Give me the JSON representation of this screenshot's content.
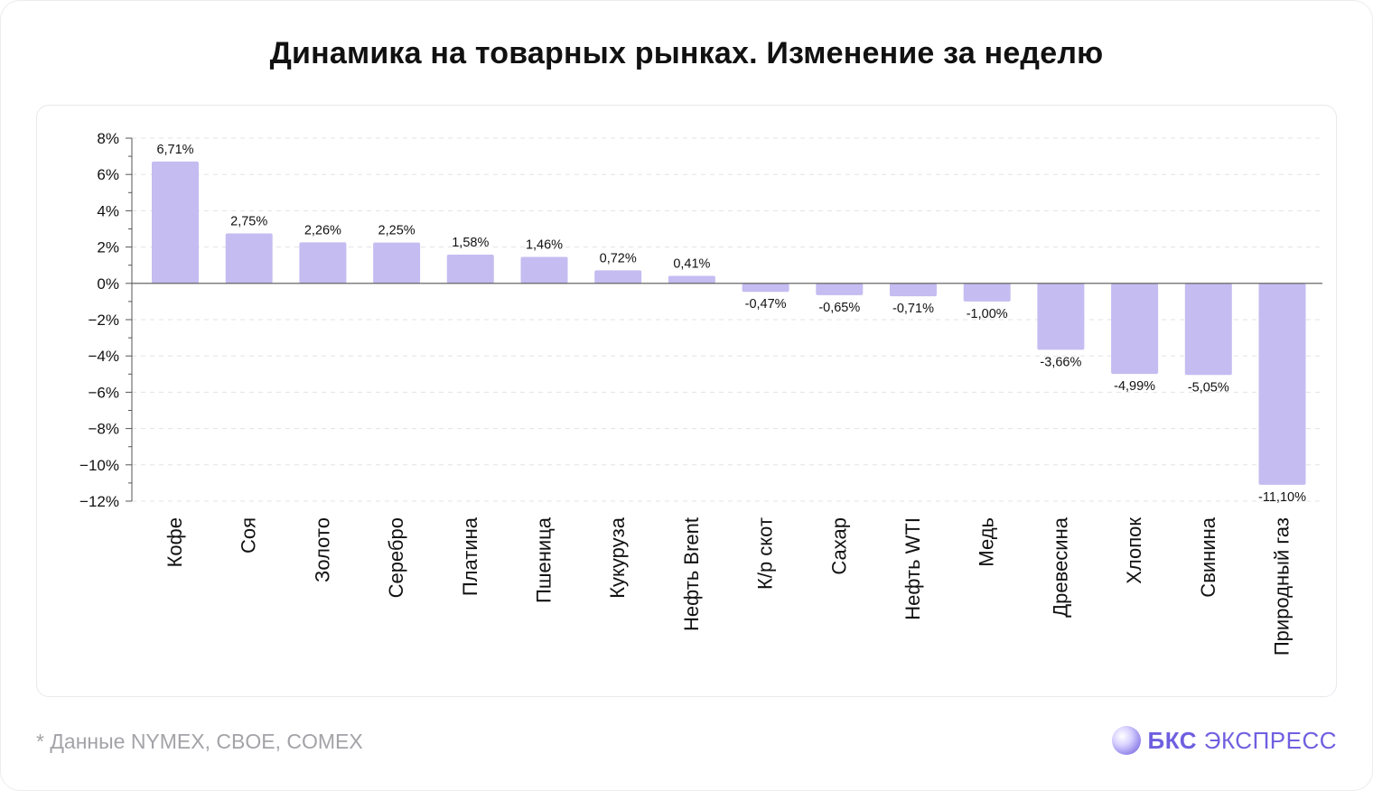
{
  "title": "Динамика на товарных рынках. Изменение за неделю",
  "footnote": "* Данные NYMEX, CBOE, COMEX",
  "brand": {
    "bold": "БКС",
    "light": " ЭКСПРЕСС"
  },
  "colors": {
    "bar": "#c5bcf1",
    "grid": "#e3e3e8",
    "axis": "#555555",
    "brand": "#6f5fe0"
  },
  "chart_data": {
    "type": "bar",
    "categories": [
      "Кофе",
      "Соя",
      "Золото",
      "Серебро",
      "Платина",
      "Пшеница",
      "Кукуруза",
      "Нефть Brent",
      "К/р скот",
      "Сахар",
      "Нефть WTI",
      "Медь",
      "Древесина",
      "Хлопок",
      "Свинина",
      "Природный газ"
    ],
    "values": [
      6.71,
      2.75,
      2.26,
      2.25,
      1.58,
      1.46,
      0.72,
      0.41,
      -0.47,
      -0.65,
      -0.71,
      -1.0,
      -3.66,
      -4.99,
      -5.05,
      -11.1
    ],
    "value_labels": [
      "6,71%",
      "2,75%",
      "2,26%",
      "2,25%",
      "1,58%",
      "1,46%",
      "0,72%",
      "0,41%",
      "-0,47%",
      "-0,65%",
      "-0,71%",
      "-1,00%",
      "-3,66%",
      "-4,99%",
      "-5,05%",
      "-11,10%"
    ],
    "ylim": [
      -12,
      8
    ],
    "yticks": [
      8,
      6,
      4,
      2,
      0,
      -2,
      -4,
      -6,
      -8,
      -10,
      -12
    ],
    "ytick_labels": [
      "8%",
      "6%",
      "4%",
      "2%",
      "0%",
      "−2%",
      "−4%",
      "−6%",
      "−8%",
      "−10%",
      "−12%"
    ],
    "grid": true,
    "legend": "none"
  }
}
